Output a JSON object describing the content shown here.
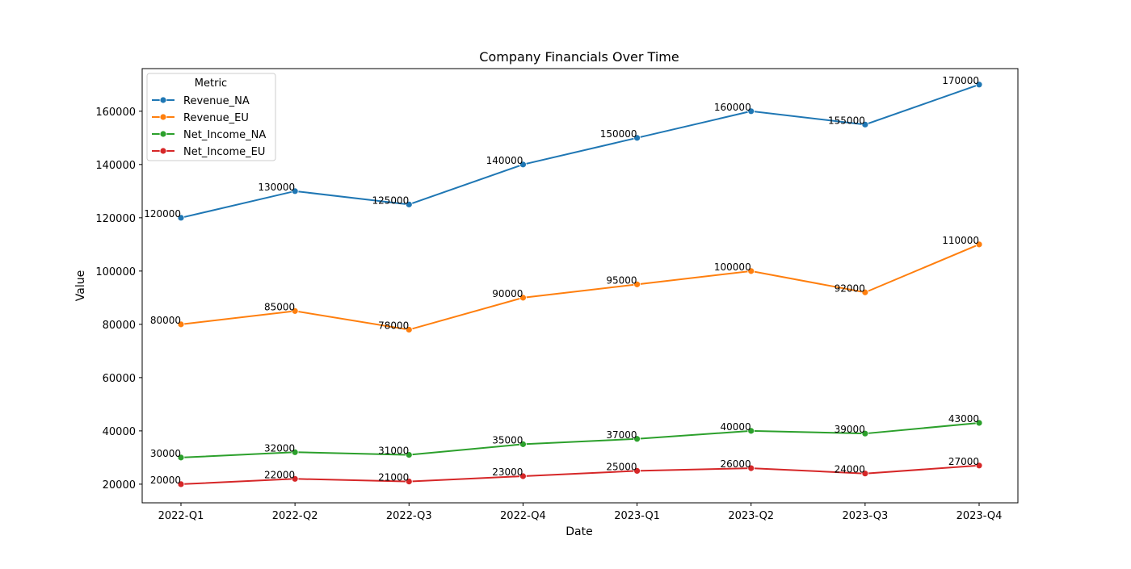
{
  "chart_data": {
    "type": "line",
    "title": "Company Financials Over Time",
    "xlabel": "Date",
    "ylabel": "Value",
    "categories": [
      "2022-Q1",
      "2022-Q2",
      "2022-Q3",
      "2022-Q4",
      "2023-Q1",
      "2023-Q2",
      "2023-Q3",
      "2023-Q4"
    ],
    "ylim": [
      13000,
      176000
    ],
    "yticks": [
      20000,
      40000,
      60000,
      80000,
      100000,
      120000,
      140000,
      160000
    ],
    "grid": false,
    "legend": {
      "title": "Metric",
      "placement": "top-left"
    },
    "series": [
      {
        "name": "Revenue_NA",
        "color": "#1f77b4",
        "values": [
          120000,
          130000,
          125000,
          140000,
          150000,
          160000,
          155000,
          170000
        ]
      },
      {
        "name": "Revenue_EU",
        "color": "#ff7f0e",
        "values": [
          80000,
          85000,
          78000,
          90000,
          95000,
          100000,
          92000,
          110000
        ]
      },
      {
        "name": "Net_Income_NA",
        "color": "#2ca02c",
        "values": [
          30000,
          32000,
          31000,
          35000,
          37000,
          40000,
          39000,
          43000
        ]
      },
      {
        "name": "Net_Income_EU",
        "color": "#d62728",
        "values": [
          20000,
          22000,
          21000,
          23000,
          25000,
          26000,
          24000,
          27000
        ]
      }
    ]
  }
}
